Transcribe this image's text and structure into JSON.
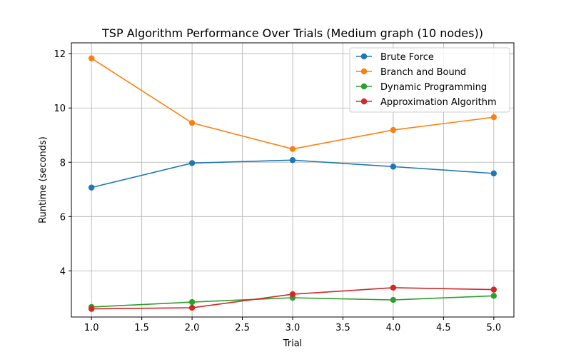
{
  "chart_data": {
    "type": "line",
    "title": "TSP Algorithm Performance Over Trials (Medium graph (10 nodes))",
    "xlabel": "Trial",
    "ylabel": "Runtime (seconds)",
    "xlim": [
      0.8,
      5.2
    ],
    "ylim": [
      2.3,
      12.4
    ],
    "xticks": [
      1.0,
      1.5,
      2.0,
      2.5,
      3.0,
      3.5,
      4.0,
      4.5,
      5.0
    ],
    "xtick_labels": [
      "1.0",
      "1.5",
      "2.0",
      "2.5",
      "3.0",
      "3.5",
      "4.0",
      "4.5",
      "5.0"
    ],
    "yticks": [
      4,
      6,
      8,
      10,
      12
    ],
    "ytick_labels": [
      "4",
      "6",
      "8",
      "10",
      "12"
    ],
    "grid": true,
    "legend_position": "top-right",
    "x": [
      1,
      2,
      3,
      4,
      5
    ],
    "series": [
      {
        "name": "Brute Force",
        "color": "#1f77b4",
        "values": [
          7.07,
          7.97,
          8.08,
          7.84,
          7.59
        ]
      },
      {
        "name": "Branch and Bound",
        "color": "#ff7f0e",
        "values": [
          11.83,
          9.45,
          8.49,
          9.19,
          9.66
        ]
      },
      {
        "name": "Dynamic Programming",
        "color": "#2ca02c",
        "values": [
          2.67,
          2.85,
          3.01,
          2.93,
          3.08
        ]
      },
      {
        "name": "Approximation Algorithm",
        "color": "#d62728",
        "values": [
          2.6,
          2.64,
          3.14,
          3.38,
          3.31
        ]
      }
    ]
  }
}
